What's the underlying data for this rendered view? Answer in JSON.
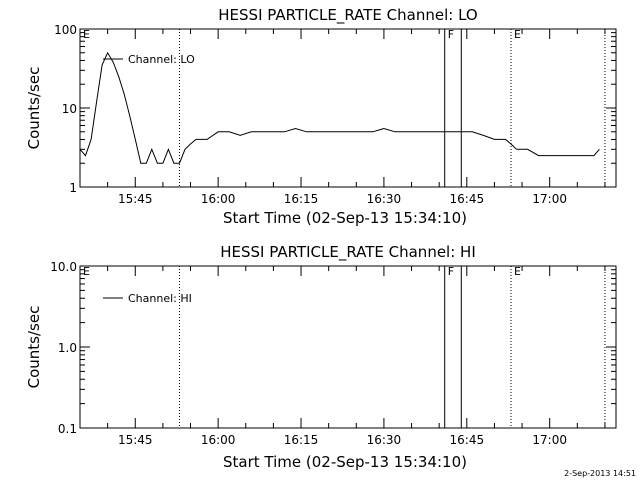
{
  "chart_data": [
    {
      "type": "line",
      "title": "HESSI PARTICLE_RATE Channel: LO",
      "xlabel": "Start Time (02-Sep-13 15:34:10)",
      "ylabel": "Counts/sec",
      "y_scale": "log",
      "ylim": [
        1,
        100
      ],
      "y_ticks": [
        "1",
        "10",
        "100"
      ],
      "x_range": [
        "15:35",
        "17:12"
      ],
      "x_ticks": [
        "15:45",
        "16:00",
        "16:15",
        "16:30",
        "16:45",
        "17:00"
      ],
      "legend": "top-left",
      "grid": false,
      "markers": [
        {
          "label": "E",
          "time": "15:35",
          "style": "none"
        },
        {
          "label": "",
          "time": "15:53",
          "style": "dotted"
        },
        {
          "label": "F",
          "time": "16:41",
          "style": "solid"
        },
        {
          "label": "",
          "time": "16:44",
          "style": "solid"
        },
        {
          "label": "E",
          "time": "16:53",
          "style": "dotted"
        },
        {
          "label": "",
          "time": "17:10",
          "style": "dotted"
        }
      ],
      "series": [
        {
          "name": "Channel: LO",
          "x": [
            "15:35",
            "15:36",
            "15:37",
            "15:38",
            "15:39",
            "15:40",
            "15:41",
            "15:42",
            "15:43",
            "15:44",
            "15:45",
            "15:46",
            "15:47",
            "15:48",
            "15:49",
            "15:50",
            "15:51",
            "15:52",
            "15:53",
            "15:54",
            "15:55",
            "15:56",
            "15:58",
            "16:00",
            "16:02",
            "16:04",
            "16:06",
            "16:08",
            "16:10",
            "16:12",
            "16:14",
            "16:16",
            "16:18",
            "16:20",
            "16:22",
            "16:24",
            "16:26",
            "16:28",
            "16:30",
            "16:32",
            "16:34",
            "16:36",
            "16:38",
            "16:40",
            "16:41",
            "16:42",
            "16:44",
            "16:46",
            "16:48",
            "16:50",
            "16:52",
            "16:53",
            "16:54",
            "16:56",
            "16:58",
            "17:00",
            "17:02",
            "17:04",
            "17:06",
            "17:08",
            "17:09"
          ],
          "values": [
            3,
            2.5,
            4,
            12,
            35,
            50,
            38,
            25,
            15,
            8,
            4,
            2,
            2,
            3,
            2,
            2,
            3,
            2,
            2,
            3,
            3.5,
            4,
            4,
            5,
            5,
            4.5,
            5,
            5,
            5,
            5,
            5.5,
            5,
            5,
            5,
            5,
            5,
            5,
            5,
            5.5,
            5,
            5,
            5,
            5,
            5,
            5,
            5,
            5,
            5,
            4.5,
            4,
            4,
            3.5,
            3,
            3,
            2.5,
            2.5,
            2.5,
            2.5,
            2.5,
            2.5,
            3
          ]
        }
      ]
    },
    {
      "type": "line",
      "title": "HESSI PARTICLE_RATE Channel: HI",
      "xlabel": "Start Time (02-Sep-13 15:34:10)",
      "ylabel": "Counts/sec",
      "y_scale": "log",
      "ylim": [
        0.1,
        10
      ],
      "y_ticks": [
        "0.1",
        "1.0",
        "10.0"
      ],
      "x_range": [
        "15:35",
        "17:12"
      ],
      "x_ticks": [
        "15:45",
        "16:00",
        "16:15",
        "16:30",
        "16:45",
        "17:00"
      ],
      "legend": "top-left",
      "grid": false,
      "markers": [
        {
          "label": "E",
          "time": "15:35",
          "style": "none"
        },
        {
          "label": "",
          "time": "15:53",
          "style": "dotted"
        },
        {
          "label": "F",
          "time": "16:41",
          "style": "solid"
        },
        {
          "label": "",
          "time": "16:44",
          "style": "solid"
        },
        {
          "label": "E",
          "time": "16:53",
          "style": "dotted"
        },
        {
          "label": "",
          "time": "17:10",
          "style": "dotted"
        }
      ],
      "series": [
        {
          "name": "Channel: HI",
          "x": [],
          "values": []
        }
      ]
    }
  ],
  "footer": {
    "timestamp": "2-Sep-2013 14:51"
  },
  "colors": {
    "background": "#ffffff",
    "ink": "#000000"
  }
}
